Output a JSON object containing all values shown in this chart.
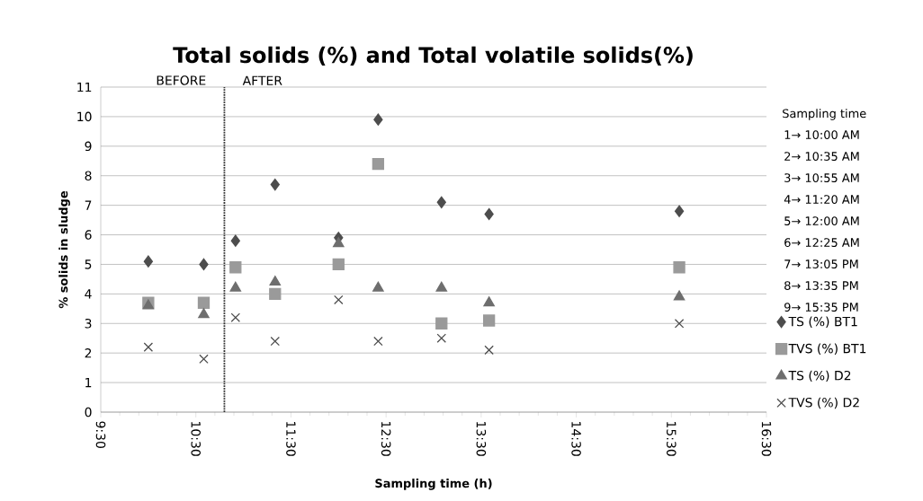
{
  "chart_data": {
    "type": "scatter",
    "title": "Total solids (%) and Total volatile solids(%)",
    "xlabel": "Sampling time (h)",
    "ylabel": "% solids in sludge",
    "x": [
      10,
      10.583,
      10.917,
      11.333,
      12,
      12.417,
      13.083,
      13.583,
      15.583
    ],
    "series": [
      {
        "name": "TS (%) BT1",
        "color": "#4d4d4d",
        "marker": "diamond",
        "values": [
          5.1,
          5.0,
          5.8,
          7.7,
          5.9,
          9.9,
          7.1,
          6.7,
          6.8
        ]
      },
      {
        "name": "TVS (%) BT1",
        "color": "#9a9a9a",
        "marker": "square",
        "values": [
          3.7,
          3.7,
          4.9,
          4.0,
          5.0,
          8.4,
          3.0,
          3.1,
          4.9
        ]
      },
      {
        "name": "TS (%) D2",
        "color": "#6e6e6e",
        "marker": "triangle",
        "values": [
          3.6,
          3.3,
          4.2,
          4.4,
          5.7,
          4.2,
          4.2,
          3.7,
          3.9
        ]
      },
      {
        "name": "TVS (%) D2",
        "color": "#4d4d4d",
        "marker": "cross",
        "values": [
          2.2,
          1.8,
          3.2,
          2.4,
          3.8,
          2.4,
          2.5,
          2.1,
          3.0
        ]
      }
    ],
    "xlim": [
      9.5,
      16.5
    ],
    "xticks": [
      {
        "value": 9.5,
        "label": "9:30"
      },
      {
        "value": 10.5,
        "label": "10:30"
      },
      {
        "value": 11.5,
        "label": "11:30"
      },
      {
        "value": 12.5,
        "label": "12:30"
      },
      {
        "value": 13.5,
        "label": "13:30"
      },
      {
        "value": 14.5,
        "label": "14:30"
      },
      {
        "value": 15.5,
        "label": "15:30"
      },
      {
        "value": 16.5,
        "label": "16:30"
      }
    ],
    "ylim": [
      0,
      11
    ],
    "yticks": [
      0,
      1,
      2,
      3,
      4,
      5,
      6,
      7,
      8,
      9,
      10,
      11
    ],
    "grid": "y",
    "legend": "right",
    "ref_lines": [
      {
        "axis": "x",
        "value": 10.8,
        "color": "#333333",
        "line_style": "dotted"
      }
    ],
    "annotations": [
      "BEFORE",
      "AFTER",
      "Sampling time",
      "1→ 10:00 AM",
      "2→ 10:35 AM",
      "3→ 10:55 AM",
      "4→ 11:20  AM",
      "5→ 12:00 AM",
      "6→  12:25 AM",
      "7→  13:05 PM",
      "8→ 13:35 PM",
      "9→ 15:35 PM"
    ]
  }
}
